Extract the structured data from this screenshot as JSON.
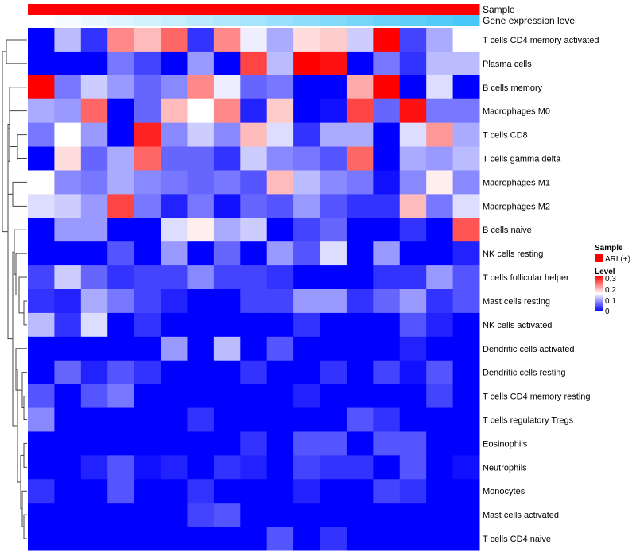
{
  "chart_data": {
    "type": "heatmap",
    "title": "",
    "rows": [
      "T cells CD4 memory activated",
      "Plasma cells",
      "B cells memory",
      "Macrophages M0",
      "T cells CD8",
      "T cells gamma delta",
      "Macrophages M1",
      "Macrophages M2",
      "B cells naive",
      "NK cells resting",
      "T cells follicular helper",
      "Mast cells resting",
      "NK cells activated",
      "Dendritic cells activated",
      "Dendritic cells resting",
      "T cells CD4 memory resting",
      "T cells regulatory  Tregs",
      "Eosinophils",
      "Neutrophils",
      "Monocytes",
      "Mast cells activated",
      "T cells CD4 naive"
    ],
    "n_columns": 17,
    "values": [
      [
        0,
        0.11,
        0.03,
        0.22,
        0.19,
        0.24,
        0.03,
        0.22,
        0.14,
        0.1,
        0.17,
        0.18,
        0.12,
        0.3,
        0.04,
        0.1,
        0.15
      ],
      [
        0,
        0,
        0,
        0.07,
        0.04,
        0,
        0.09,
        0,
        0.26,
        0.11,
        0.3,
        0.29,
        0,
        0.07,
        0.03,
        0.11,
        0.11
      ],
      [
        0.3,
        0.07,
        0.12,
        0.09,
        0.06,
        0.08,
        0.22,
        0.14,
        0.06,
        0.07,
        0,
        0,
        0.2,
        0.3,
        0,
        0.13,
        0
      ],
      [
        0.1,
        0.09,
        0.24,
        0,
        0.06,
        0.19,
        0.15,
        0.22,
        0.02,
        0.18,
        0,
        0.01,
        0.26,
        0.06,
        0.29,
        0.07,
        0.07
      ],
      [
        0.07,
        0.15,
        0.09,
        0,
        0.28,
        0.08,
        0.12,
        0.08,
        0.19,
        0.13,
        0.03,
        0.1,
        0.1,
        0,
        0.13,
        0.21,
        0.1
      ],
      [
        0,
        0.17,
        0.06,
        0.1,
        0.24,
        0.06,
        0.06,
        0.03,
        0.12,
        0.08,
        0.07,
        0.05,
        0.24,
        0,
        0.1,
        0.09,
        0.11
      ],
      [
        0.15,
        0.08,
        0.07,
        0.1,
        0.08,
        0.07,
        0.06,
        0.07,
        0.05,
        0.19,
        0.11,
        0.08,
        0.07,
        0.01,
        0.08,
        0.16,
        0.08
      ],
      [
        0.13,
        0.12,
        0.09,
        0.26,
        0.07,
        0.02,
        0.07,
        0.01,
        0.06,
        0.05,
        0.09,
        0.05,
        0.03,
        0.03,
        0.19,
        0.07,
        0.13
      ],
      [
        0,
        0.09,
        0.09,
        0,
        0,
        0.13,
        0.16,
        0.1,
        0.12,
        0,
        0.04,
        0.06,
        0,
        0,
        0.03,
        0,
        0.25
      ],
      [
        0,
        0,
        0,
        0.05,
        0,
        0.09,
        0,
        0.06,
        0,
        0.09,
        0.05,
        0.13,
        0,
        0.09,
        0,
        0,
        0.02
      ],
      [
        0.04,
        0.12,
        0.06,
        0.03,
        0.04,
        0.04,
        0.08,
        0.04,
        0.04,
        0.03,
        0,
        0,
        0,
        0.03,
        0.03,
        0.09,
        0.05
      ],
      [
        0.03,
        0.02,
        0.1,
        0.07,
        0.04,
        0.02,
        0,
        0,
        0.04,
        0.04,
        0.09,
        0.09,
        0.03,
        0.06,
        0.09,
        0.03,
        0.05
      ],
      [
        0.11,
        0.03,
        0.13,
        0,
        0.03,
        0,
        0,
        0,
        0,
        0,
        0.03,
        0,
        0,
        0,
        0.05,
        0.02,
        0
      ],
      [
        0,
        0,
        0,
        0,
        0,
        0.09,
        0,
        0.11,
        0,
        0.05,
        0,
        0,
        0,
        0,
        0.02,
        0,
        0
      ],
      [
        0,
        0.06,
        0.02,
        0.05,
        0.03,
        0,
        0,
        0,
        0.03,
        0,
        0,
        0.03,
        0,
        0.04,
        0.01,
        0.05,
        0
      ],
      [
        0.05,
        0,
        0.05,
        0.07,
        0,
        0,
        0,
        0,
        0,
        0,
        0.02,
        0,
        0,
        0,
        0,
        0.04,
        0
      ],
      [
        0.08,
        0,
        0,
        0,
        0,
        0,
        0.03,
        0,
        0,
        0,
        0,
        0,
        0.05,
        0.03,
        0,
        0,
        0
      ],
      [
        0,
        0,
        0,
        0,
        0,
        0,
        0,
        0,
        0.03,
        0,
        0.05,
        0.05,
        0,
        0.05,
        0.05,
        0,
        0
      ],
      [
        0,
        0,
        0.02,
        0.05,
        0.01,
        0.02,
        0,
        0.03,
        0.02,
        0,
        0.04,
        0.03,
        0.03,
        0,
        0.05,
        0,
        0.01
      ],
      [
        0.03,
        0,
        0,
        0.05,
        0,
        0,
        0.03,
        0,
        0,
        0,
        0.02,
        0,
        0,
        0.04,
        0.03,
        0,
        0
      ],
      [
        0,
        0,
        0,
        0,
        0,
        0,
        0.04,
        0.05,
        0,
        0,
        0,
        0,
        0,
        0,
        0,
        0,
        0
      ],
      [
        0,
        0,
        0,
        0,
        0,
        0,
        0,
        0,
        0,
        0.05,
        0,
        0.03,
        0,
        0,
        0,
        0,
        0
      ]
    ],
    "annotations": {
      "sample": {
        "label": "Sample",
        "value": "ARL(+)",
        "color": "#ff0000"
      },
      "gene_expression": {
        "label": "Gene expression level",
        "rank": [
          0,
          1,
          2,
          3,
          4,
          5,
          6,
          7,
          8,
          9,
          10,
          11,
          12,
          13,
          14,
          15,
          16
        ],
        "low_color": "#ffffff",
        "high_color": "#48c8f8"
      }
    },
    "color_scale": {
      "low": "#0000ff",
      "mid": "#ffffff",
      "high": "#ff0000",
      "range": [
        0,
        0.3
      ]
    },
    "legend": {
      "sample_title": "Sample",
      "sample_item": "ARL(+)",
      "level_title": "Level",
      "level_ticks": [
        "0.3",
        "0.2",
        "0.1",
        "0"
      ],
      "placement": "right"
    }
  }
}
